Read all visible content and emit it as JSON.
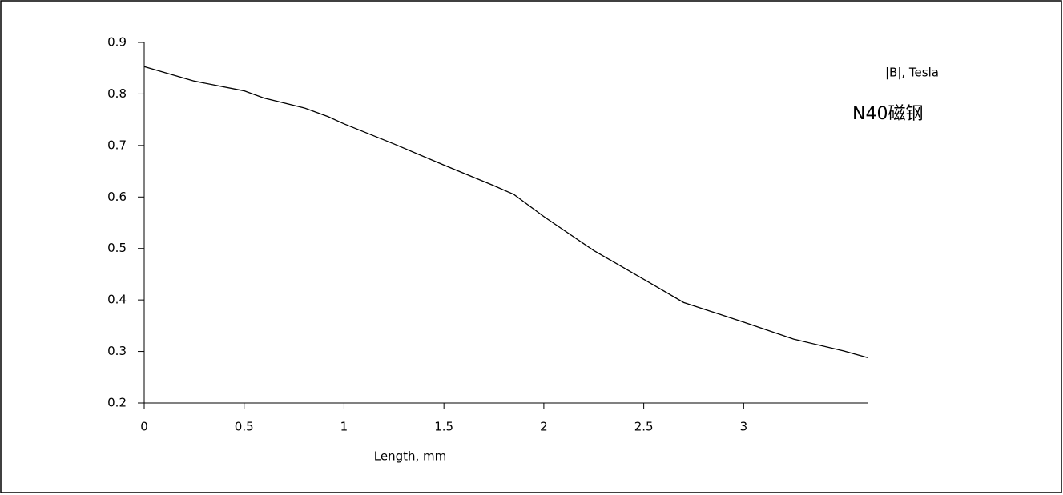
{
  "chart_data": {
    "type": "line",
    "xlabel": "Length, mm",
    "ylabel": "|B|, Tesla",
    "annotation": "N40磁钢",
    "x": [
      0,
      0.25,
      0.5,
      0.6,
      0.8,
      0.92,
      1,
      1.25,
      1.5,
      1.75,
      1.85,
      2,
      2.25,
      2.5,
      2.7,
      3,
      3.25,
      3.5,
      3.62
    ],
    "values": [
      0.853,
      0.825,
      0.806,
      0.792,
      0.773,
      0.756,
      0.742,
      0.703,
      0.662,
      0.622,
      0.605,
      0.562,
      0.496,
      0.44,
      0.395,
      0.357,
      0.324,
      0.301,
      0.288
    ],
    "color": "#000000",
    "xlim": [
      0,
      3.62
    ],
    "xticks": [
      0,
      0.5,
      1,
      1.5,
      2,
      2.5,
      3
    ],
    "ylim": [
      0.2,
      0.9
    ],
    "yticks": [
      0.2,
      0.3,
      0.4,
      0.5,
      0.6,
      0.7,
      0.8,
      0.9
    ]
  }
}
